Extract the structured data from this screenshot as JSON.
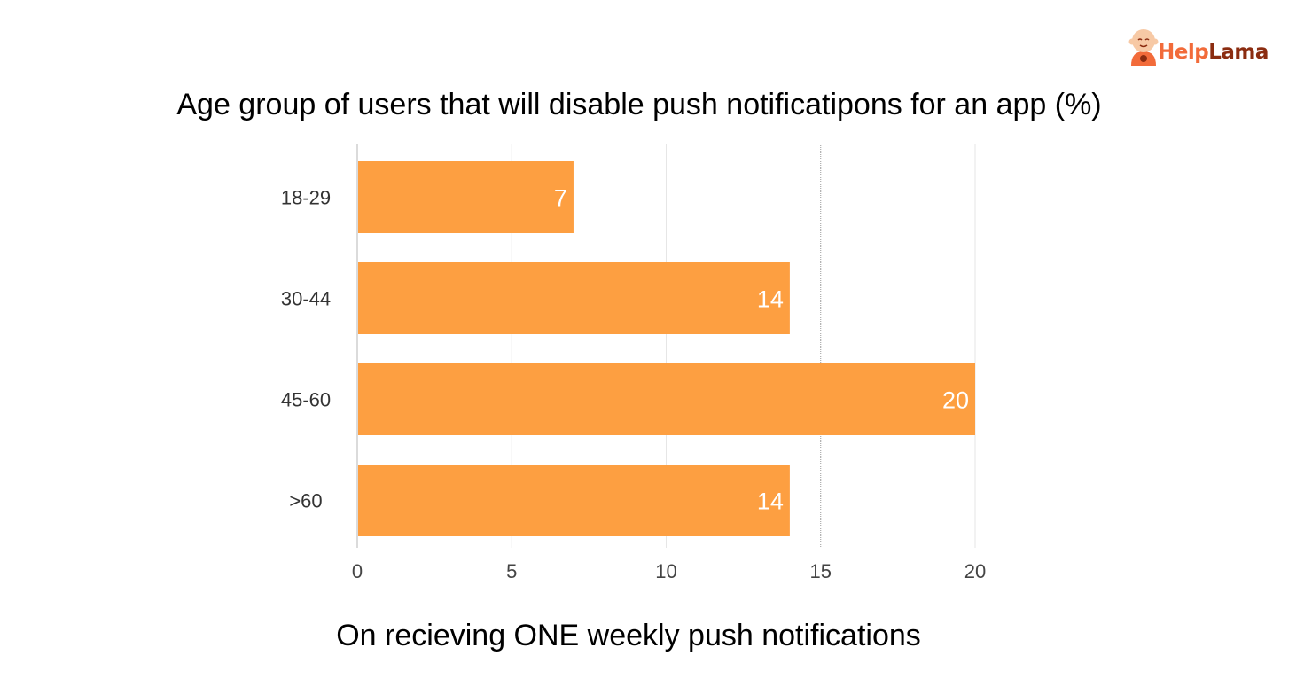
{
  "brand": {
    "logo_part_a": "Help",
    "logo_part_b": "Lama",
    "primary_color": "#f26b3a",
    "secondary_color": "#8b2c10"
  },
  "chart_data": {
    "type": "bar",
    "orientation": "horizontal",
    "title": "Age group of users that will disable push notificatipons for an app (%)",
    "xlabel": "On recieving ONE weekly push notifications",
    "ylabel": "",
    "categories": [
      "18-29",
      "30-44",
      "45-60",
      ">60"
    ],
    "values": [
      7,
      14,
      20,
      14
    ],
    "value_labels": [
      "7",
      "14",
      "20",
      "14"
    ],
    "xlim": [
      0,
      20
    ],
    "x_ticks": [
      0,
      5,
      10,
      15,
      20
    ],
    "x_tick_labels": [
      "0",
      "5",
      "10",
      "15",
      "20"
    ],
    "bar_color": "#fd9f41",
    "grid": true,
    "legend": "none"
  }
}
